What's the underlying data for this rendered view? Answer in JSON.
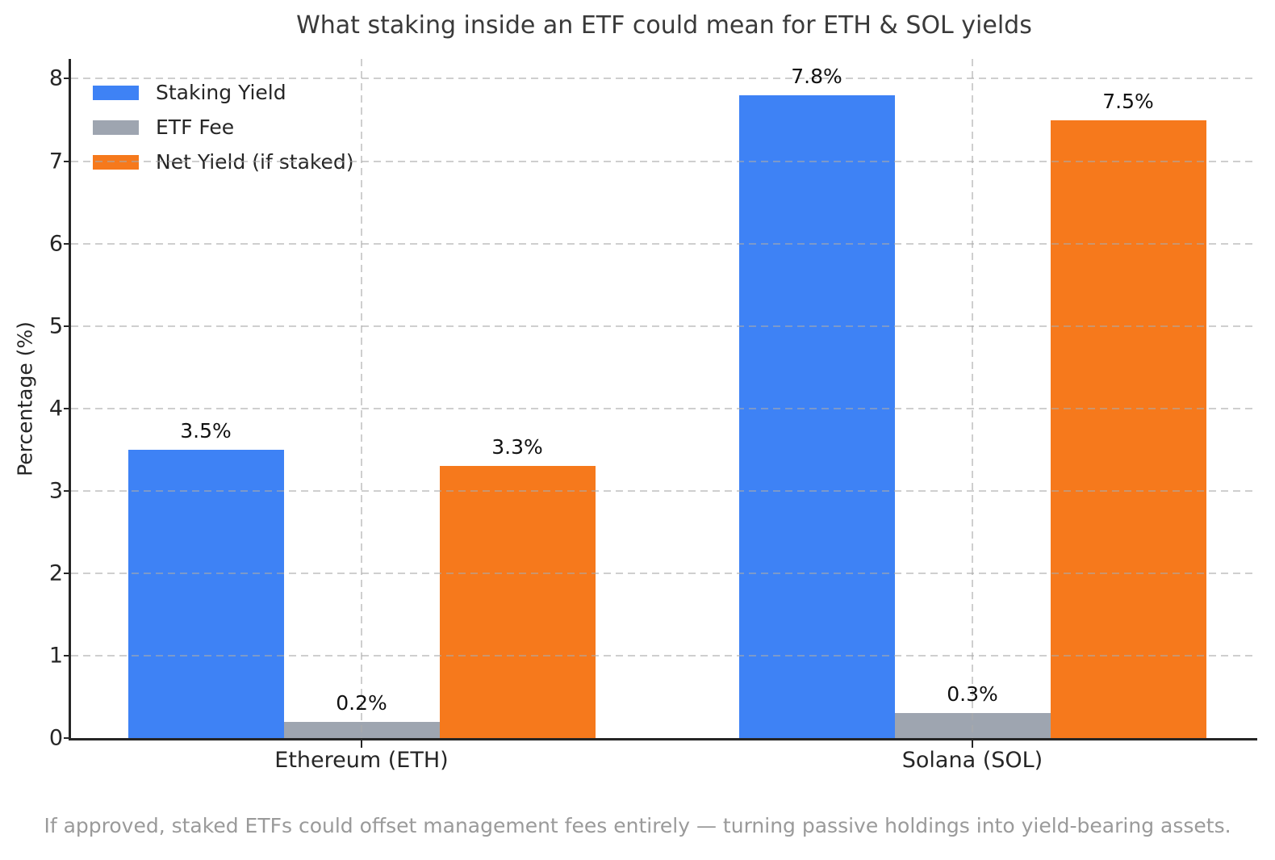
{
  "chart_data": {
    "type": "bar",
    "title": "What staking inside an ETF could mean for ETH & SOL yields",
    "ylabel": "Percentage (%)",
    "xlabel": "",
    "categories": [
      "Ethereum (ETH)",
      "Solana (SOL)"
    ],
    "series": [
      {
        "name": "Staking Yield",
        "color": "#3e82f5",
        "values": [
          3.5,
          7.8
        ],
        "data_labels": [
          "3.5%",
          "7.8%"
        ]
      },
      {
        "name": "ETF Fee",
        "color": "#9ea5b0",
        "values": [
          0.2,
          0.3
        ],
        "data_labels": [
          "0.2%",
          "0.3%"
        ]
      },
      {
        "name": "Net Yield (if staked)",
        "color": "#f6791c",
        "values": [
          3.3,
          7.5
        ],
        "data_labels": [
          "3.3%",
          "7.5%"
        ]
      }
    ],
    "ylim": [
      0,
      8.24
    ],
    "yticks": [
      0,
      1,
      2,
      3,
      4,
      5,
      6,
      7,
      8
    ],
    "grid": "dashed light-gray horizontal lines at integer ticks and vertical lines at category centers, drawn over bars",
    "legend_position": "upper left",
    "caption": "If approved, staked ETFs could offset management fees entirely — turning passive holdings into yield-bearing assets."
  },
  "text_colors": {
    "title": "#3a3a3a",
    "axis_text": "#262626",
    "bar_labels": "#111111",
    "caption": "#9a9a9a"
  }
}
